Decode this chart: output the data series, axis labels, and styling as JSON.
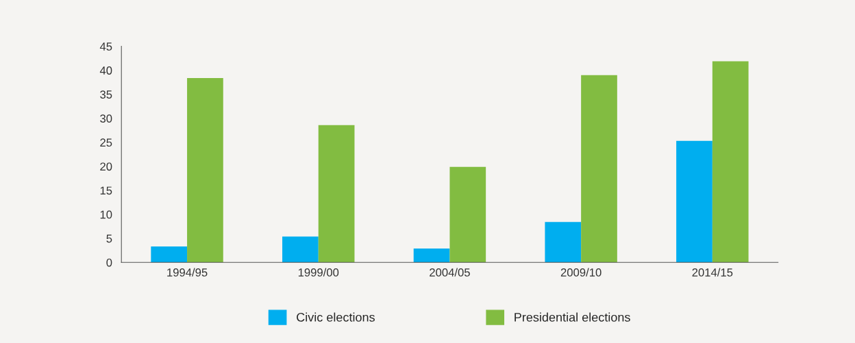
{
  "chart_data": {
    "type": "bar",
    "categories": [
      "1994/95",
      "1999/00",
      "2004/05",
      "2009/10",
      "2014/15"
    ],
    "series": [
      {
        "name": "Civic elections",
        "color": "#00aeef",
        "values": [
          3.3,
          5.4,
          2.9,
          8.4,
          25.3
        ]
      },
      {
        "name": "Presidential elections",
        "color": "#82bc41",
        "values": [
          38.4,
          28.6,
          19.9,
          39.0,
          41.9
        ]
      }
    ],
    "ylim": [
      0,
      45
    ],
    "yticks": [
      0,
      5,
      10,
      15,
      20,
      25,
      30,
      35,
      40,
      45
    ],
    "grid": false,
    "legend": "bottom"
  }
}
